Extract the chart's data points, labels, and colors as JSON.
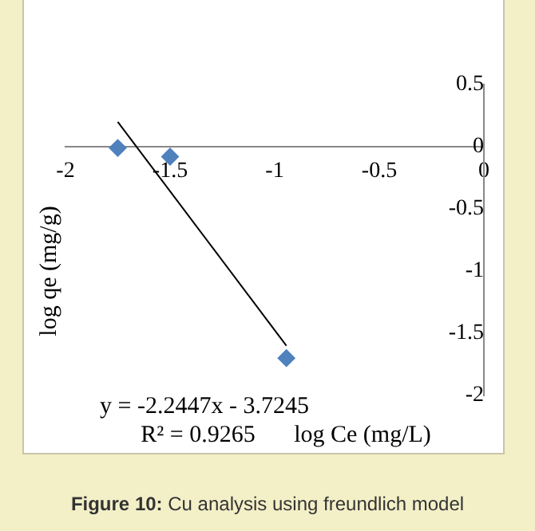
{
  "chart_data": {
    "type": "scatter",
    "title": "Figure 10: Cu analysis using freundlich model",
    "xlabel": "log Ce (mg/L)",
    "ylabel": "log qe (mg/g)",
    "annotations": [
      "y = -2.2447x - 3.7245",
      "R² = 0.9265"
    ],
    "xlim": [
      -2,
      0
    ],
    "xticks": [
      -2,
      -1.5,
      -1,
      -0.5,
      0
    ],
    "ylim": [
      -2,
      0.5
    ],
    "yticks": [
      0.5,
      0,
      -0.5,
      -1,
      -1.5,
      -2
    ],
    "grid": false,
    "legend": false,
    "marker": "diamond",
    "series": [
      {
        "color": "#4f81bd",
        "x": [
          -1.75,
          -1.5,
          -0.944
        ],
        "values": [
          -0.01,
          -0.08,
          -1.7
        ]
      },
      {
        "type": "line",
        "color": "#000000",
        "marker": "none",
        "x": [
          -1.75,
          -0.944
        ],
        "values": [
          0.2,
          -1.6
        ]
      }
    ]
  }
}
